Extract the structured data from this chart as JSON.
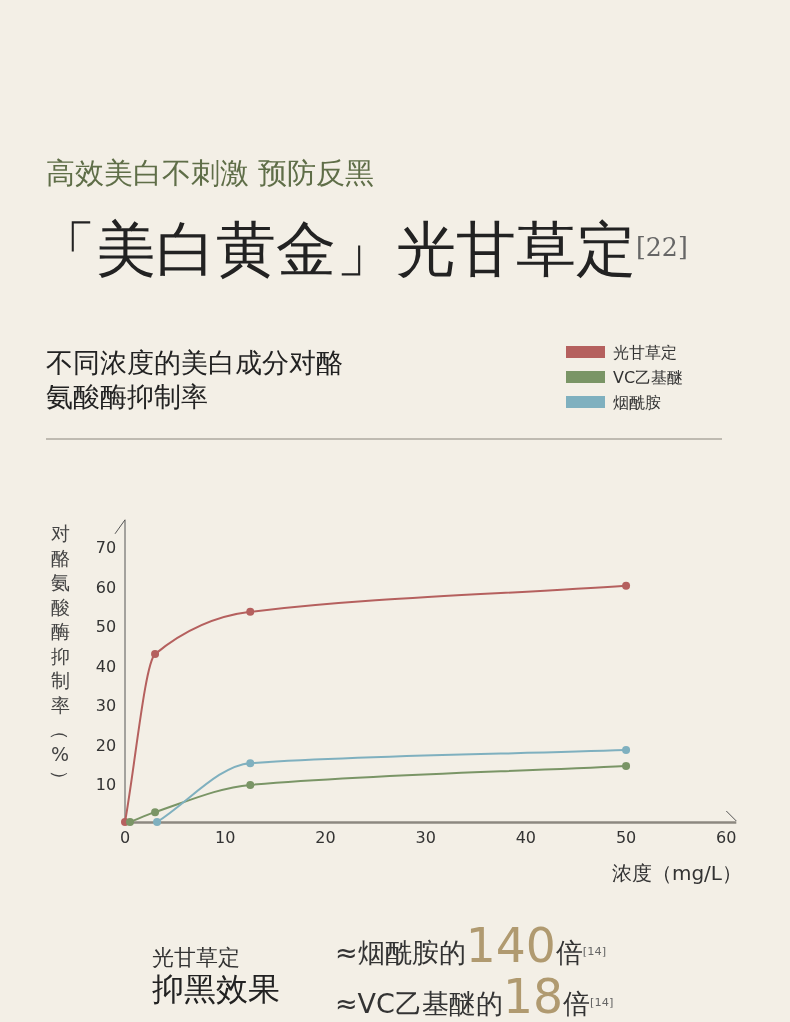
{
  "chart_data": {
    "type": "line",
    "title": "不同浓度的美白成分对酪氨酸酶抑制率",
    "xlabel": "浓度（mg/L）",
    "ylabel": "对酪氨酸酶抑制率（%）",
    "annotations": [
      "高效美白不刺激 预防反黑",
      "「美白黄金」光甘草定$^{[22]}$",
      "光甘草定",
      "抑黑效果",
      "≈烟酰胺的140倍$^{[14]}$",
      "≈VC乙基醚的18倍$^{[14]}$"
    ],
    "series": [
      {
        "name": "光甘草定",
        "color": "#b5605e",
        "x": [
          0,
          3,
          12.5,
          50
        ],
        "values": [
          0.5,
          43,
          53.7,
          60.3
        ]
      },
      {
        "name": "VC乙基醚",
        "color": "#7a9566",
        "x": [
          0.5,
          3,
          12.5,
          50
        ],
        "values": [
          0.5,
          3,
          9.9,
          14.7
        ]
      },
      {
        "name": "烟酰胺",
        "color": "#7fb0bf",
        "x": [
          3.2,
          12.5,
          50
        ],
        "values": [
          0.5,
          15.4,
          18.7
        ]
      }
    ],
    "xlim": [
      0,
      61
    ],
    "ylim": [
      0,
      77
    ],
    "xticks": [
      0,
      10,
      20,
      30,
      40,
      50,
      60
    ],
    "yticks": [
      10,
      20,
      30,
      40,
      50,
      60,
      70
    ],
    "marker": "circle",
    "line_style": "solid",
    "legend": "top right",
    "grid": false
  }
}
